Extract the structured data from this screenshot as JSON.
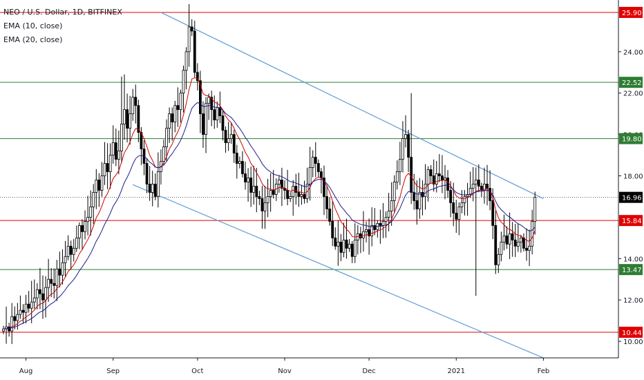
{
  "legend": {
    "title": "NEO / U.S. Dollar, 1D, BITFINEX",
    "ema10": "EMA (10, close)",
    "ema20": "EMA (20, close)"
  },
  "colors": {
    "up": "#ffffff",
    "down": "#000000",
    "wick": "#000000",
    "ema10": "#cc0000",
    "ema20": "#1a1a8c",
    "trendline": "#5b9bd5",
    "level_red": "#e00000",
    "level_green": "#2e7d32",
    "last_price_bg": "#000000"
  },
  "chart_data": {
    "type": "candlestick",
    "title": "NEO / U.S. Dollar, 1D, BITFINEX",
    "y_axis": {
      "ticks": [
        "10.00",
        "12.00",
        "14.00",
        "18.00",
        "20.00",
        "22.00",
        "24.00"
      ],
      "range": [
        9.2,
        26.5
      ]
    },
    "x_axis": {
      "ticks": [
        "Aug",
        "Sep",
        "Oct",
        "Nov",
        "Dec",
        "2021",
        "Feb"
      ]
    },
    "horizontal_levels": [
      {
        "value": 25.9,
        "label": "25.90",
        "color": "red"
      },
      {
        "value": 22.52,
        "label": "22.52",
        "color": "green"
      },
      {
        "value": 19.8,
        "label": "19.80",
        "color": "green"
      },
      {
        "value": 15.84,
        "label": "15.84",
        "color": "red"
      },
      {
        "value": 13.47,
        "label": "13.47",
        "color": "green"
      },
      {
        "value": 10.44,
        "label": "10.44",
        "color": "red"
      }
    ],
    "last_price": {
      "value": 16.96,
      "label": "16.96"
    },
    "trendlines": [
      {
        "name": "upper channel",
        "from": {
          "date": "2020-09-18",
          "value": 25.9
        },
        "to": {
          "date": "2021-02-01",
          "value": 16.9
        }
      },
      {
        "name": "lower channel",
        "from": {
          "date": "2020-09-18",
          "value": 17.0
        },
        "to": {
          "date": "2021-02-01",
          "value": 9.2
        }
      }
    ],
    "closes": [
      10.6,
      10.7,
      10.5,
      11.2,
      11.0,
      11.3,
      11.5,
      11.4,
      11.8,
      11.6,
      11.9,
      12.1,
      12.5,
      12.3,
      12.0,
      12.6,
      13.0,
      12.8,
      12.7,
      13.5,
      13.2,
      13.8,
      14.1,
      14.6,
      14.2,
      14.5,
      15.0,
      15.6,
      15.3,
      15.8,
      16.0,
      16.5,
      17.2,
      17.8,
      17.3,
      18.0,
      18.6,
      18.2,
      19.0,
      19.6,
      18.8,
      19.2,
      20.5,
      21.2,
      20.3,
      21.0,
      21.8,
      21.4,
      20.1,
      19.3,
      18.6,
      17.6,
      17.2,
      17.6,
      17.0,
      18.2,
      18.7,
      19.4,
      20.3,
      21.0,
      20.6,
      21.4,
      21.2,
      22.0,
      23.1,
      24.0,
      25.2,
      25.0,
      23.0,
      22.6,
      21.0,
      20.0,
      21.5,
      21.8,
      21.2,
      20.7,
      21.3,
      20.9,
      20.2,
      19.6,
      19.8,
      20.0,
      19.1,
      18.6,
      18.7,
      18.1,
      17.7,
      17.9,
      17.2,
      17.5,
      17.0,
      16.9,
      16.3,
      16.7,
      17.0,
      17.3,
      17.1,
      17.6,
      17.8,
      17.4,
      17.3,
      16.9,
      17.0,
      17.5,
      17.2,
      17.0,
      17.1,
      16.9,
      17.6,
      18.4,
      18.9,
      18.6,
      18.2,
      17.9,
      17.0,
      16.4,
      15.8,
      15.0,
      14.6,
      14.8,
      14.3,
      14.9,
      14.5,
      14.7,
      14.1,
      14.9,
      15.2,
      15.0,
      15.3,
      15.4,
      15.1,
      15.6,
      15.4,
      15.7,
      15.6,
      15.8,
      16.0,
      16.3,
      16.8,
      17.7,
      18.2,
      18.8,
      19.8,
      20.0,
      18.9,
      17.2,
      16.8,
      16.4,
      17.2,
      17.0,
      17.6,
      18.3,
      18.0,
      17.6,
      18.1,
      18.0,
      17.8,
      17.9,
      17.3,
      16.7,
      16.2,
      15.9,
      16.5,
      16.7,
      17.0,
      17.1,
      17.4,
      17.6,
      17.8,
      17.5,
      17.3,
      17.6,
      17.4,
      16.8,
      15.6,
      13.7,
      14.2,
      14.8,
      15.1,
      14.7,
      15.2,
      14.9,
      14.6,
      14.8,
      15.0,
      14.5,
      14.4,
      14.6,
      15.8,
      16.96
    ],
    "ema10_color": "red",
    "ema20_color": "navy"
  }
}
